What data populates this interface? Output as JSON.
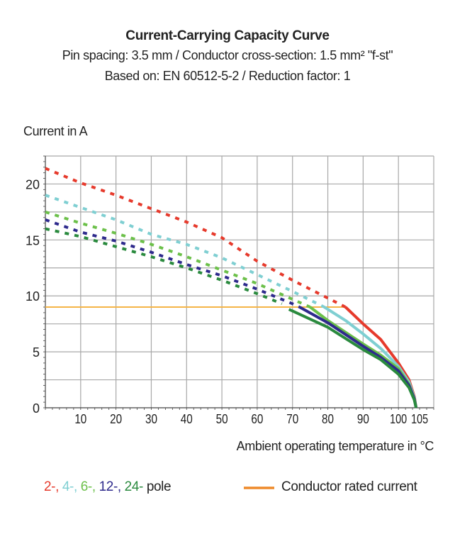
{
  "chart_data": {
    "type": "line",
    "title": "Current-Carrying Capacity Curve",
    "subtitle": [
      "Pin spacing: 3.5 mm / Conductor cross-section: 1.5 mm² \"f-st\"",
      "Based on: EN 60512-5-2 / Reduction factor: 1"
    ],
    "ylabel": "Current in A",
    "xlabel": "Ambient operating temperature in °C",
    "xlim": [
      0,
      110
    ],
    "ylim": [
      0,
      22.5
    ],
    "x_ticks": [
      10,
      20,
      30,
      40,
      50,
      60,
      70,
      80,
      90,
      100,
      105
    ],
    "y_ticks": [
      0,
      5,
      10,
      15,
      20
    ],
    "grid": true,
    "series": [
      {
        "name": "2-",
        "color": "#e63a2c",
        "dashed": [
          [
            0,
            21.4
          ],
          [
            10,
            20.1
          ],
          [
            20,
            19.0
          ],
          [
            30,
            17.8
          ],
          [
            40,
            16.6
          ],
          [
            50,
            15.2
          ],
          [
            60,
            13.1
          ],
          [
            70,
            11.4
          ],
          [
            85,
            9.0
          ]
        ],
        "solid": [
          [
            85,
            9.0
          ],
          [
            90,
            7.5
          ],
          [
            95,
            6.1
          ],
          [
            100,
            4.0
          ],
          [
            103,
            2.5
          ],
          [
            104.5,
            1.0
          ],
          [
            105,
            0
          ]
        ]
      },
      {
        "name": "4-",
        "color": "#7fcfd2",
        "dashed": [
          [
            0,
            19.0
          ],
          [
            10,
            17.9
          ],
          [
            20,
            16.8
          ],
          [
            30,
            15.5
          ],
          [
            40,
            14.6
          ],
          [
            50,
            13.4
          ],
          [
            60,
            11.9
          ],
          [
            70,
            10.4
          ],
          [
            79,
            9.0
          ]
        ],
        "solid": [
          [
            79,
            9.0
          ],
          [
            85,
            7.8
          ],
          [
            90,
            6.6
          ],
          [
            95,
            5.3
          ],
          [
            100,
            3.7
          ],
          [
            103,
            2.3
          ],
          [
            104.5,
            0.9
          ],
          [
            105,
            0
          ]
        ]
      },
      {
        "name": "6-",
        "color": "#6cc04a",
        "dashed": [
          [
            0,
            17.5
          ],
          [
            10,
            16.5
          ],
          [
            20,
            15.6
          ],
          [
            30,
            14.6
          ],
          [
            40,
            13.5
          ],
          [
            50,
            12.3
          ],
          [
            60,
            11.1
          ],
          [
            70,
            9.7
          ],
          [
            75,
            9.0
          ]
        ],
        "solid": [
          [
            75,
            9.0
          ],
          [
            80,
            7.8
          ],
          [
            90,
            5.7
          ],
          [
            95,
            4.7
          ],
          [
            100,
            3.5
          ],
          [
            103,
            2.1
          ],
          [
            104.5,
            0.8
          ],
          [
            105,
            0
          ]
        ]
      },
      {
        "name": "12-",
        "color": "#2e2a8c",
        "dashed": [
          [
            0,
            16.8
          ],
          [
            10,
            15.7
          ],
          [
            20,
            14.9
          ],
          [
            30,
            13.9
          ],
          [
            40,
            12.8
          ],
          [
            50,
            11.8
          ],
          [
            60,
            10.6
          ],
          [
            70,
            9.3
          ],
          [
            72,
            9.0
          ]
        ],
        "solid": [
          [
            72,
            9.0
          ],
          [
            80,
            7.6
          ],
          [
            90,
            5.5
          ],
          [
            95,
            4.5
          ],
          [
            100,
            3.3
          ],
          [
            103,
            2.0
          ],
          [
            104.5,
            0.8
          ],
          [
            105,
            0
          ]
        ]
      },
      {
        "name": "24-",
        "color": "#2a8a3e",
        "dashed": [
          [
            0,
            16.0
          ],
          [
            10,
            15.3
          ],
          [
            20,
            14.4
          ],
          [
            30,
            13.5
          ],
          [
            40,
            12.5
          ],
          [
            50,
            11.4
          ],
          [
            60,
            10.2
          ],
          [
            67,
            9.3
          ]
        ],
        "solid": [
          [
            69,
            8.8
          ],
          [
            80,
            7.2
          ],
          [
            90,
            5.2
          ],
          [
            95,
            4.3
          ],
          [
            100,
            3.0
          ],
          [
            103,
            1.8
          ],
          [
            104.5,
            0.7
          ],
          [
            105,
            0
          ]
        ]
      }
    ],
    "rated_current": {
      "name": "Conductor rated current",
      "value": 9,
      "x_range": [
        0,
        85
      ],
      "color": "#f5b547",
      "legend_color": "#ee8a2a"
    },
    "legend": {
      "series_suffix": "pole",
      "placement": "bottom"
    }
  }
}
